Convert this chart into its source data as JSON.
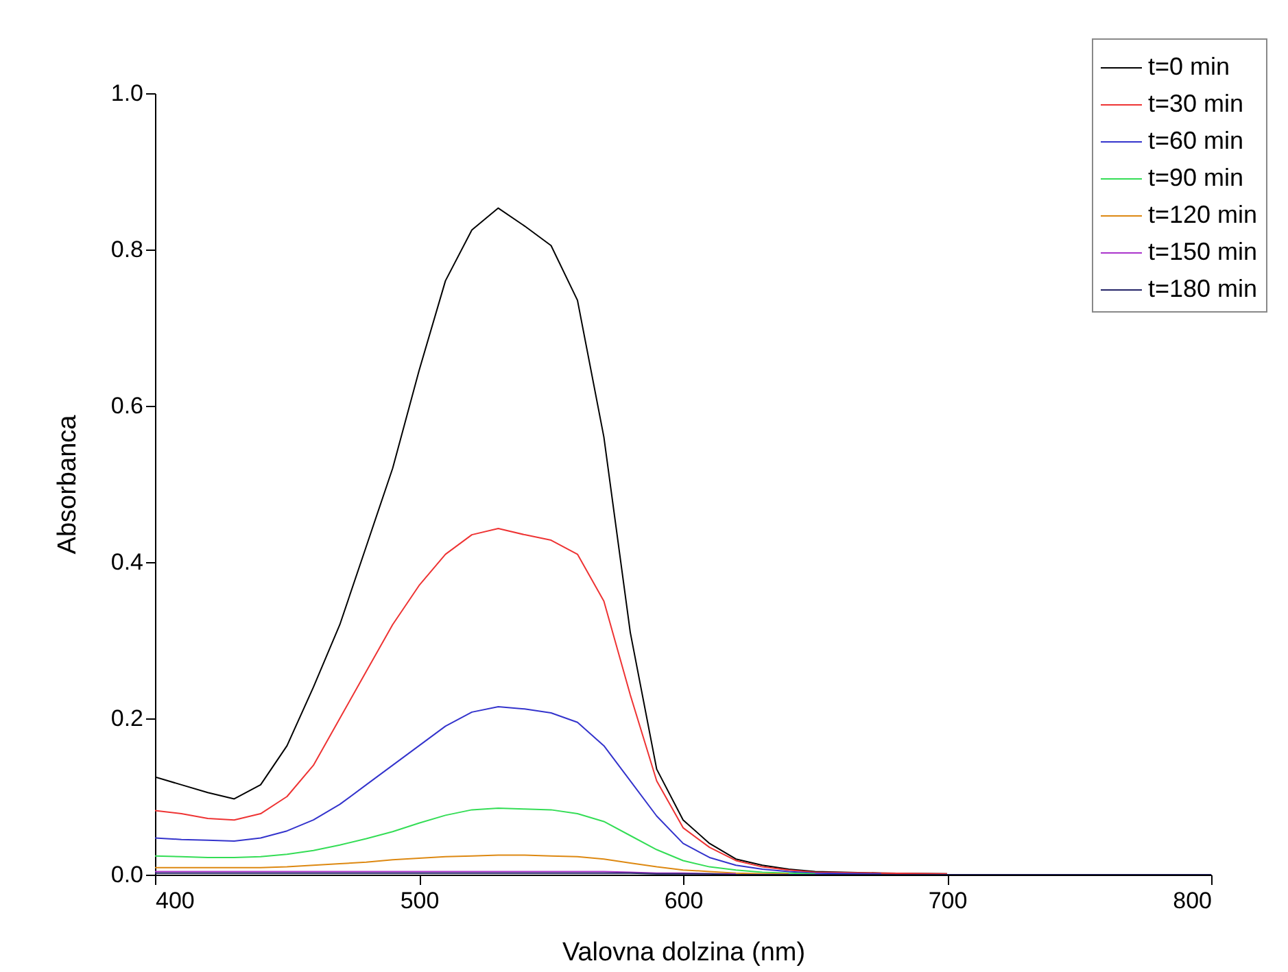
{
  "chart_data": {
    "type": "line",
    "xlabel": "Valovna dolzina (nm)",
    "ylabel": "Absorbanca",
    "x": [
      400,
      410,
      420,
      430,
      440,
      450,
      460,
      470,
      480,
      490,
      500,
      510,
      520,
      530,
      540,
      550,
      560,
      570,
      580,
      590,
      600,
      610,
      620,
      630,
      640,
      650,
      675,
      700,
      750,
      800
    ],
    "series": [
      {
        "name": "t=0 min",
        "color": "#000000",
        "values": [
          0.125,
          0.115,
          0.105,
          0.097,
          0.115,
          0.165,
          0.24,
          0.32,
          0.42,
          0.52,
          0.645,
          0.76,
          0.825,
          0.853,
          0.83,
          0.805,
          0.735,
          0.56,
          0.31,
          0.135,
          0.07,
          0.04,
          0.02,
          0.012,
          0.007,
          0.004,
          0.002,
          0.001,
          null,
          null
        ]
      },
      {
        "name": "t=30 min",
        "color": "#ee3333",
        "values": [
          0.082,
          0.078,
          0.072,
          0.07,
          0.078,
          0.1,
          0.14,
          0.2,
          0.26,
          0.32,
          0.37,
          0.41,
          0.435,
          0.443,
          0.435,
          0.428,
          0.41,
          0.35,
          0.23,
          0.12,
          0.06,
          0.035,
          0.018,
          0.01,
          0.006,
          0.003,
          0.002,
          0.001,
          null,
          null
        ]
      },
      {
        "name": "t=60 min",
        "color": "#3333cc",
        "values": [
          0.047,
          0.045,
          0.044,
          0.043,
          0.047,
          0.056,
          0.07,
          0.09,
          0.115,
          0.14,
          0.165,
          0.19,
          0.208,
          0.215,
          0.212,
          0.207,
          0.195,
          0.165,
          0.12,
          0.075,
          0.04,
          0.022,
          0.012,
          0.007,
          0.004,
          0.002,
          0.001,
          null,
          null,
          null
        ]
      },
      {
        "name": "t=90 min",
        "color": "#33dd55",
        "values": [
          0.024,
          0.023,
          0.022,
          0.022,
          0.023,
          0.026,
          0.031,
          0.038,
          0.046,
          0.055,
          0.066,
          0.076,
          0.083,
          0.085,
          0.084,
          0.083,
          0.078,
          0.068,
          0.05,
          0.032,
          0.018,
          0.01,
          0.006,
          0.003,
          0.002,
          0.001,
          null,
          null,
          null,
          null
        ]
      },
      {
        "name": "t=120 min",
        "color": "#dd8811",
        "values": [
          0.009,
          0.009,
          0.009,
          0.009,
          0.009,
          0.01,
          0.012,
          0.014,
          0.016,
          0.019,
          0.021,
          0.023,
          0.024,
          0.025,
          0.025,
          0.024,
          0.023,
          0.02,
          0.015,
          0.01,
          0.006,
          0.004,
          0.002,
          0.001,
          0.001,
          null,
          null,
          null,
          null,
          null
        ]
      },
      {
        "name": "t=150 min",
        "color": "#aa33cc",
        "values": [
          0.004,
          0.004,
          0.004,
          0.004,
          0.004,
          0.004,
          0.004,
          0.004,
          0.004,
          0.004,
          0.004,
          0.004,
          0.004,
          0.004,
          0.004,
          0.004,
          0.004,
          0.004,
          0.003,
          0.002,
          0.002,
          0.001,
          0.001,
          null,
          null,
          null,
          null,
          null,
          null,
          null
        ]
      },
      {
        "name": "t=180 min",
        "color": "#222266",
        "values": [
          0.002,
          0.002,
          0.002,
          0.002,
          0.002,
          0.002,
          0.002,
          0.002,
          0.002,
          0.002,
          0.002,
          0.002,
          0.002,
          0.002,
          0.002,
          0.002,
          0.002,
          0.002,
          0.002,
          0.001,
          0.001,
          0.001,
          0,
          0,
          0,
          0,
          0,
          0,
          0,
          0
        ]
      }
    ],
    "xlim": [
      400,
      800
    ],
    "xticks": [
      400,
      500,
      600,
      700,
      800
    ],
    "ylim": [
      0,
      1
    ],
    "yticks": [
      {
        "value": 0,
        "label": "0.0"
      },
      {
        "value": 0.2,
        "label": "0.2"
      },
      {
        "value": 0.4,
        "label": "0.4"
      },
      {
        "value": 0.6,
        "label": "0.6"
      },
      {
        "value": 0.8,
        "label": "0.8"
      },
      {
        "value": 1,
        "label": "1.0"
      }
    ],
    "legend": "top right",
    "grid": false
  }
}
